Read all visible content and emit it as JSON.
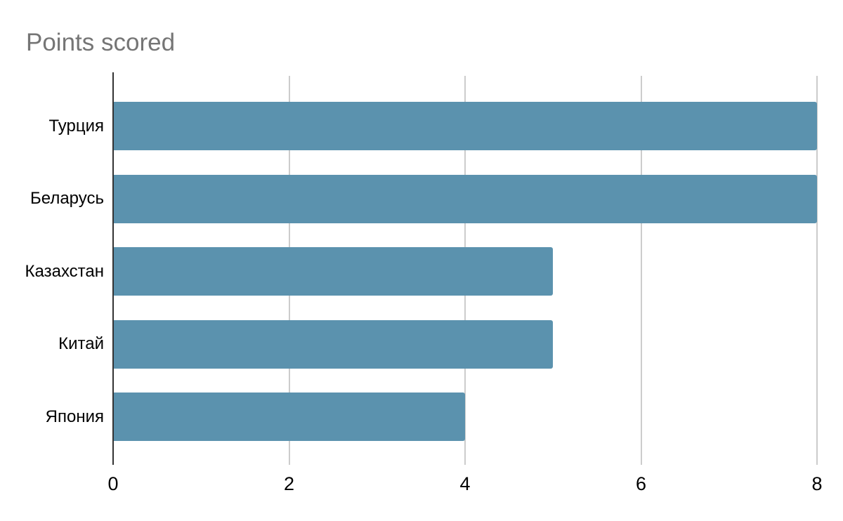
{
  "chart_data": {
    "type": "bar",
    "orientation": "horizontal",
    "title": "Points scored",
    "categories": [
      "Турция",
      "Беларусь",
      "Казахстан",
      "Китай",
      "Япония"
    ],
    "values": [
      8,
      8,
      5,
      5,
      4
    ],
    "xlabel": "",
    "ylabel": "",
    "xlim": [
      0,
      8
    ],
    "xticks": [
      0,
      2,
      4,
      6,
      8
    ],
    "xtick_labels": [
      "0",
      "2",
      "4",
      "6",
      "8"
    ],
    "grid": "vertical-only",
    "legend": "none",
    "colors": {
      "bar": "#5b92ae",
      "gridline": "#cccccc",
      "axis_line": "#333333",
      "title": "#757575",
      "labels": "#000000",
      "background": "#ffffff"
    }
  }
}
